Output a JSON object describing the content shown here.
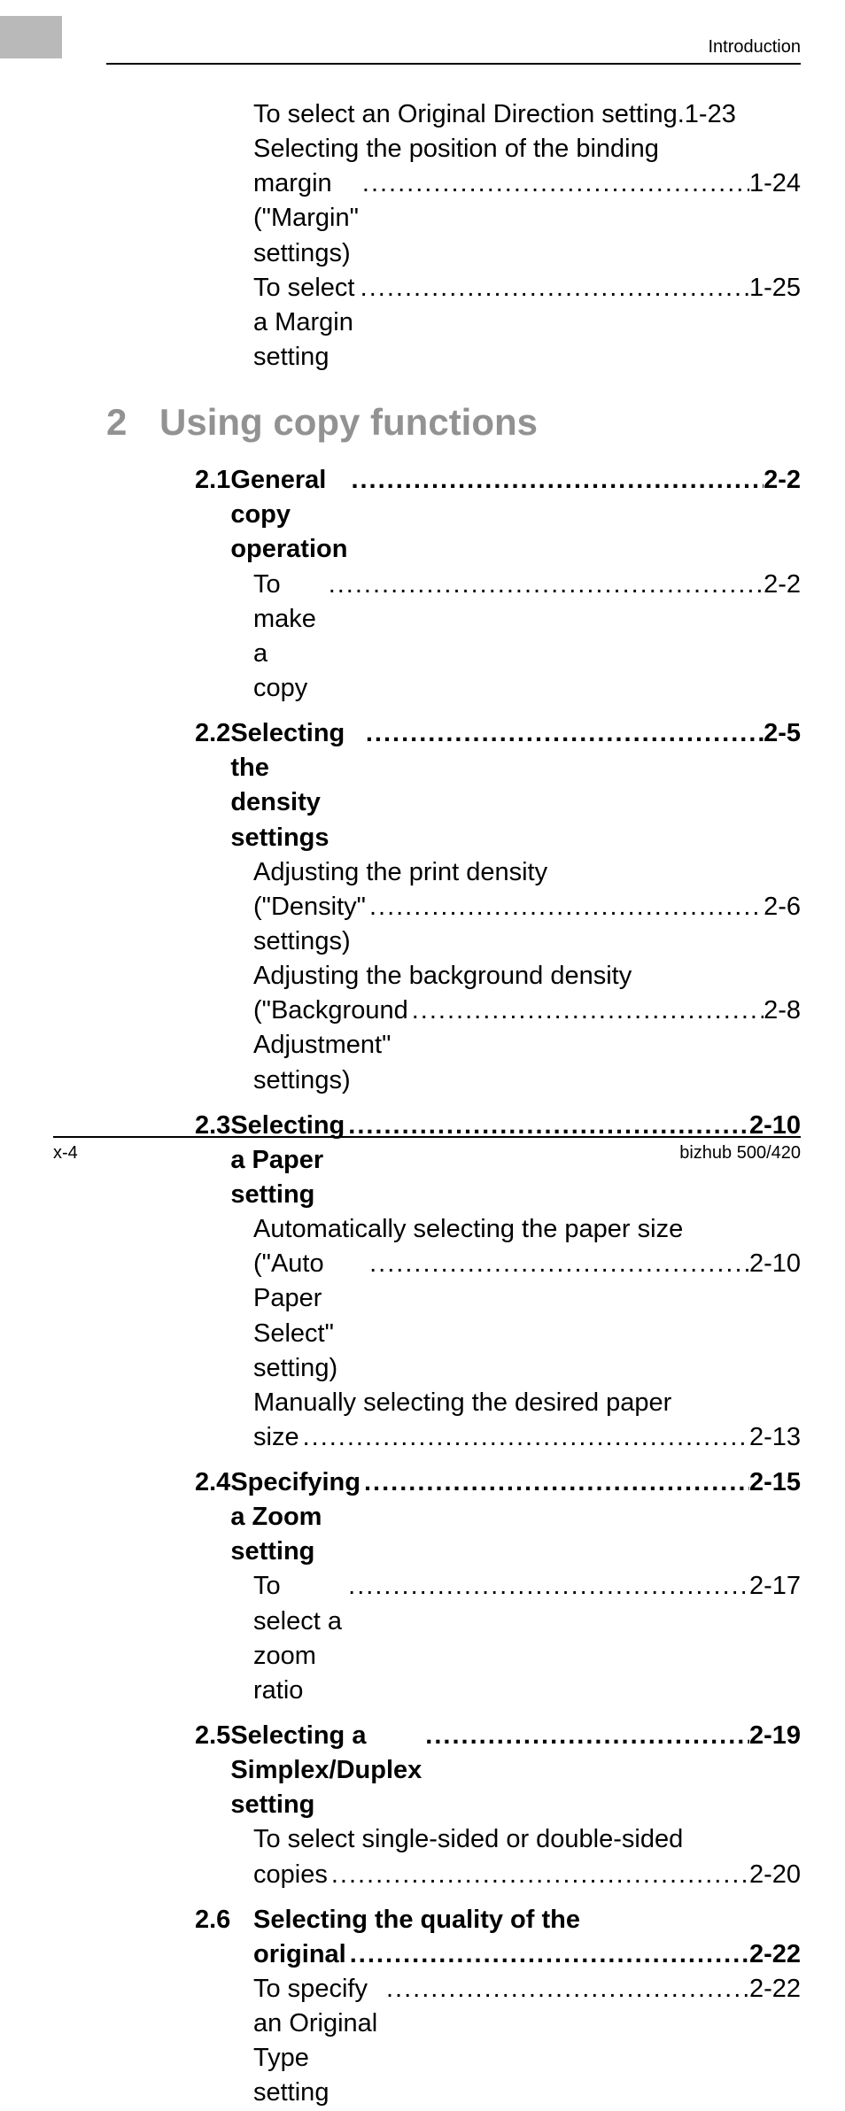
{
  "header": {
    "section_label": "Introduction"
  },
  "pre_items": [
    {
      "title": "To select an Original Direction setting",
      "page": "1-23",
      "leader": " . "
    },
    {
      "title": "Selecting the position of the binding",
      "cont": true
    },
    {
      "title": "margin (\"Margin\" settings)",
      "page": "1-24"
    },
    {
      "title": "To select a Margin setting",
      "page": "1-25"
    }
  ],
  "chapter": {
    "num": "2",
    "title": "Using copy functions"
  },
  "sections": [
    {
      "num": "2.1",
      "title": "General copy operation",
      "page": "2-2",
      "bold": true,
      "items": [
        {
          "title": "To make a copy",
          "page": "2-2"
        }
      ]
    },
    {
      "num": "2.2",
      "title": "Selecting the density settings",
      "page": "2-5",
      "bold": true,
      "items": [
        {
          "title": "Adjusting the print density",
          "cont": true
        },
        {
          "title": "(\"Density\" settings)",
          "page": "2-6"
        },
        {
          "title": "Adjusting the background density",
          "cont": true
        },
        {
          "title": "(\"Background Adjustment\" settings)",
          "page": "2-8"
        }
      ]
    },
    {
      "num": "2.3",
      "title": "Selecting a Paper setting",
      "page": "2-10",
      "bold": true,
      "items": [
        {
          "title": "Automatically selecting the paper size",
          "cont": true
        },
        {
          "title": "(\"Auto Paper Select\" setting)",
          "page": "2-10"
        },
        {
          "title": "Manually selecting the desired paper",
          "cont": true
        },
        {
          "title": "size",
          "page": "2-13"
        }
      ]
    },
    {
      "num": "2.4",
      "title": "Specifying a Zoom setting",
      "page": "2-15",
      "bold": true,
      "items": [
        {
          "title": "To select a zoom ratio",
          "page": "2-17"
        }
      ]
    },
    {
      "num": "2.5",
      "title": "Selecting a Simplex/Duplex setting",
      "page": "2-19",
      "bold": true,
      "items": [
        {
          "title": "To select single-sided or double-sided",
          "cont": true
        },
        {
          "title": "copies",
          "page": "2-20"
        }
      ]
    },
    {
      "num": "2.6",
      "title": "Selecting the quality of the",
      "bold": true,
      "cont": true,
      "title2": "original",
      "page2": "2-22",
      "items": [
        {
          "title": "To specify an Original Type setting",
          "page": "2-22"
        }
      ]
    }
  ],
  "footer": {
    "left": "x-4",
    "right": "bizhub 500/420"
  }
}
